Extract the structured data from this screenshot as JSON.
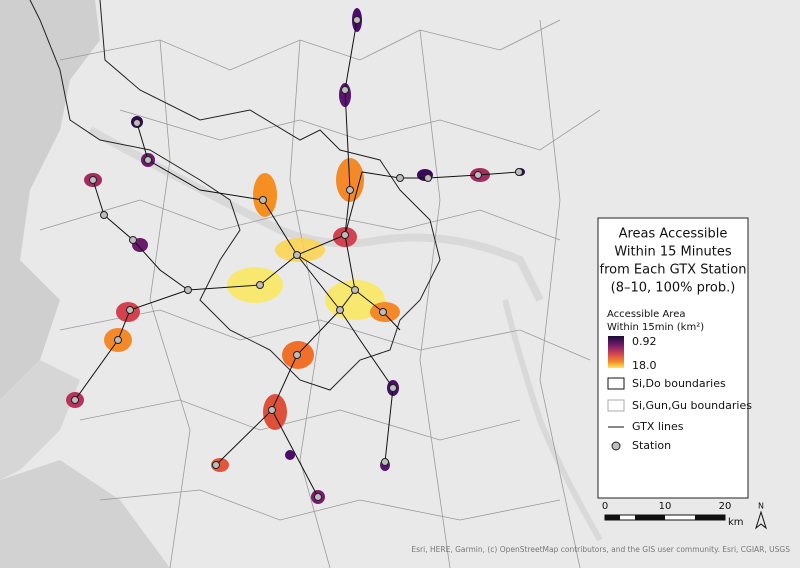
{
  "legend": {
    "title_lines": [
      "Areas Accessible",
      "Within 15 Minutes",
      "from Each GTX Station",
      "(8–10, 100% prob.)"
    ],
    "subtitle_lines": [
      "Accessible Area",
      "Within 15min (km²)"
    ],
    "ramp_top": "0.92",
    "ramp_bottom": "18.0",
    "items": [
      "Si,Do boundaries",
      "Si,Gun,Gu boundaries",
      "GTX lines",
      "Station"
    ]
  },
  "scale_bar": {
    "labels": [
      "0",
      "10",
      "20"
    ],
    "unit": "km",
    "north": "N"
  },
  "attribution": "Esri, HERE, Garmin, (c) OpenStreetMap contributors, and the GIS user community. Esri, CGIAR, USGS"
}
